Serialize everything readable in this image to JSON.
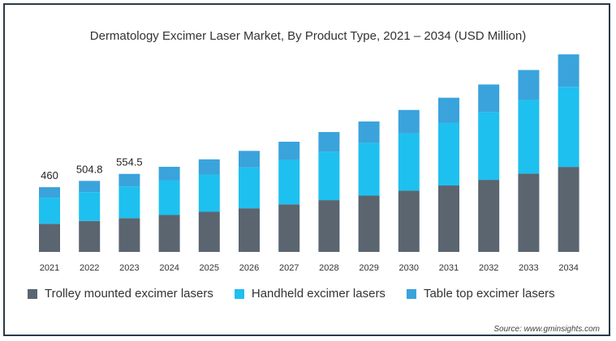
{
  "chart_data": {
    "type": "bar",
    "stacked": true,
    "title": "Dermatology Excimer Laser Market, By Product Type, 2021 – 2034 (USD Million)",
    "categories": [
      "2021",
      "2022",
      "2023",
      "2024",
      "2025",
      "2026",
      "2027",
      "2028",
      "2029",
      "2030",
      "2031",
      "2032",
      "2033",
      "2034"
    ],
    "series": [
      {
        "name": "Trolley mounted excimer lasers",
        "color": "#5a6570",
        "values": [
          200,
          220,
          240,
          262,
          285,
          310,
          338,
          368,
          400,
          435,
          472,
          512,
          556,
          604
        ]
      },
      {
        "name": "Handheld excimer lasers",
        "color": "#1ec0ef",
        "values": [
          185,
          205,
          225,
          245,
          265,
          290,
          316,
          344,
          375,
          408,
          444,
          482,
          524,
          569
        ]
      },
      {
        "name": "Table top excimer lasers",
        "color": "#3aa3dc",
        "values": [
          75,
          79.8,
          89.5,
          98,
          108,
          118,
          129,
          140,
          152,
          166,
          180,
          196,
          213,
          231
        ]
      }
    ],
    "data_labels": [
      {
        "category": "2021",
        "text": "460"
      },
      {
        "category": "2022",
        "text": "504.8"
      },
      {
        "category": "2023",
        "text": "554.5"
      }
    ],
    "ylim": [
      0,
      1520
    ],
    "grid": false,
    "legend_position": "bottom",
    "source": "Source: www.gminsights.com"
  }
}
